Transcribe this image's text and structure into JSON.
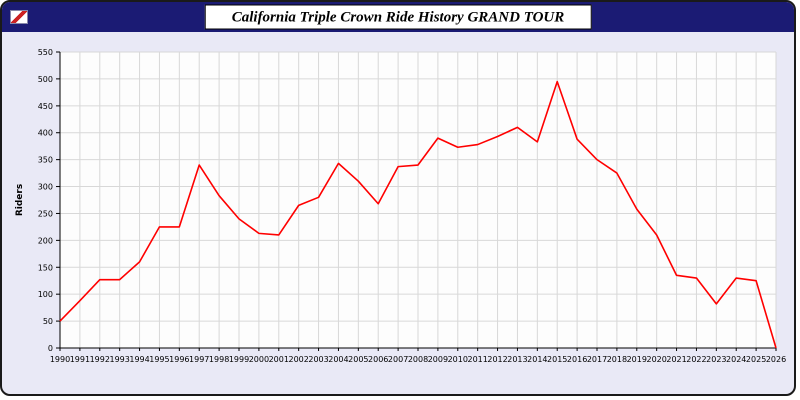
{
  "window": {
    "title": "California Triple Crown Ride History GRAND TOUR"
  },
  "chart_data": {
    "type": "line",
    "title": "California Triple Crown Ride History GRAND TOUR",
    "xlabel": "",
    "ylabel": "Riders",
    "ylim": [
      0,
      550
    ],
    "ytick_step": 50,
    "grid": true,
    "legend_position": "none",
    "line_color": "#ff0000",
    "plot_bg": "#fdfdfd",
    "x": [
      1990,
      1991,
      1992,
      1993,
      1994,
      1995,
      1996,
      1997,
      1998,
      1999,
      2000,
      2001,
      2002,
      2003,
      2004,
      2005,
      2006,
      2007,
      2008,
      2009,
      2010,
      2011,
      2012,
      2013,
      2014,
      2015,
      2016,
      2017,
      2018,
      2019,
      2020,
      2021,
      2022,
      2023,
      2024,
      2025,
      2026
    ],
    "series": [
      {
        "name": "Riders",
        "values": [
          50,
          88,
          127,
          127,
          160,
          225,
          225,
          340,
          283,
          240,
          213,
          210,
          265,
          280,
          343,
          310,
          268,
          337,
          340,
          390,
          373,
          378,
          393,
          410,
          383,
          495,
          388,
          350,
          325,
          258,
          210,
          135,
          130,
          82,
          130,
          125,
          0
        ]
      }
    ]
  }
}
